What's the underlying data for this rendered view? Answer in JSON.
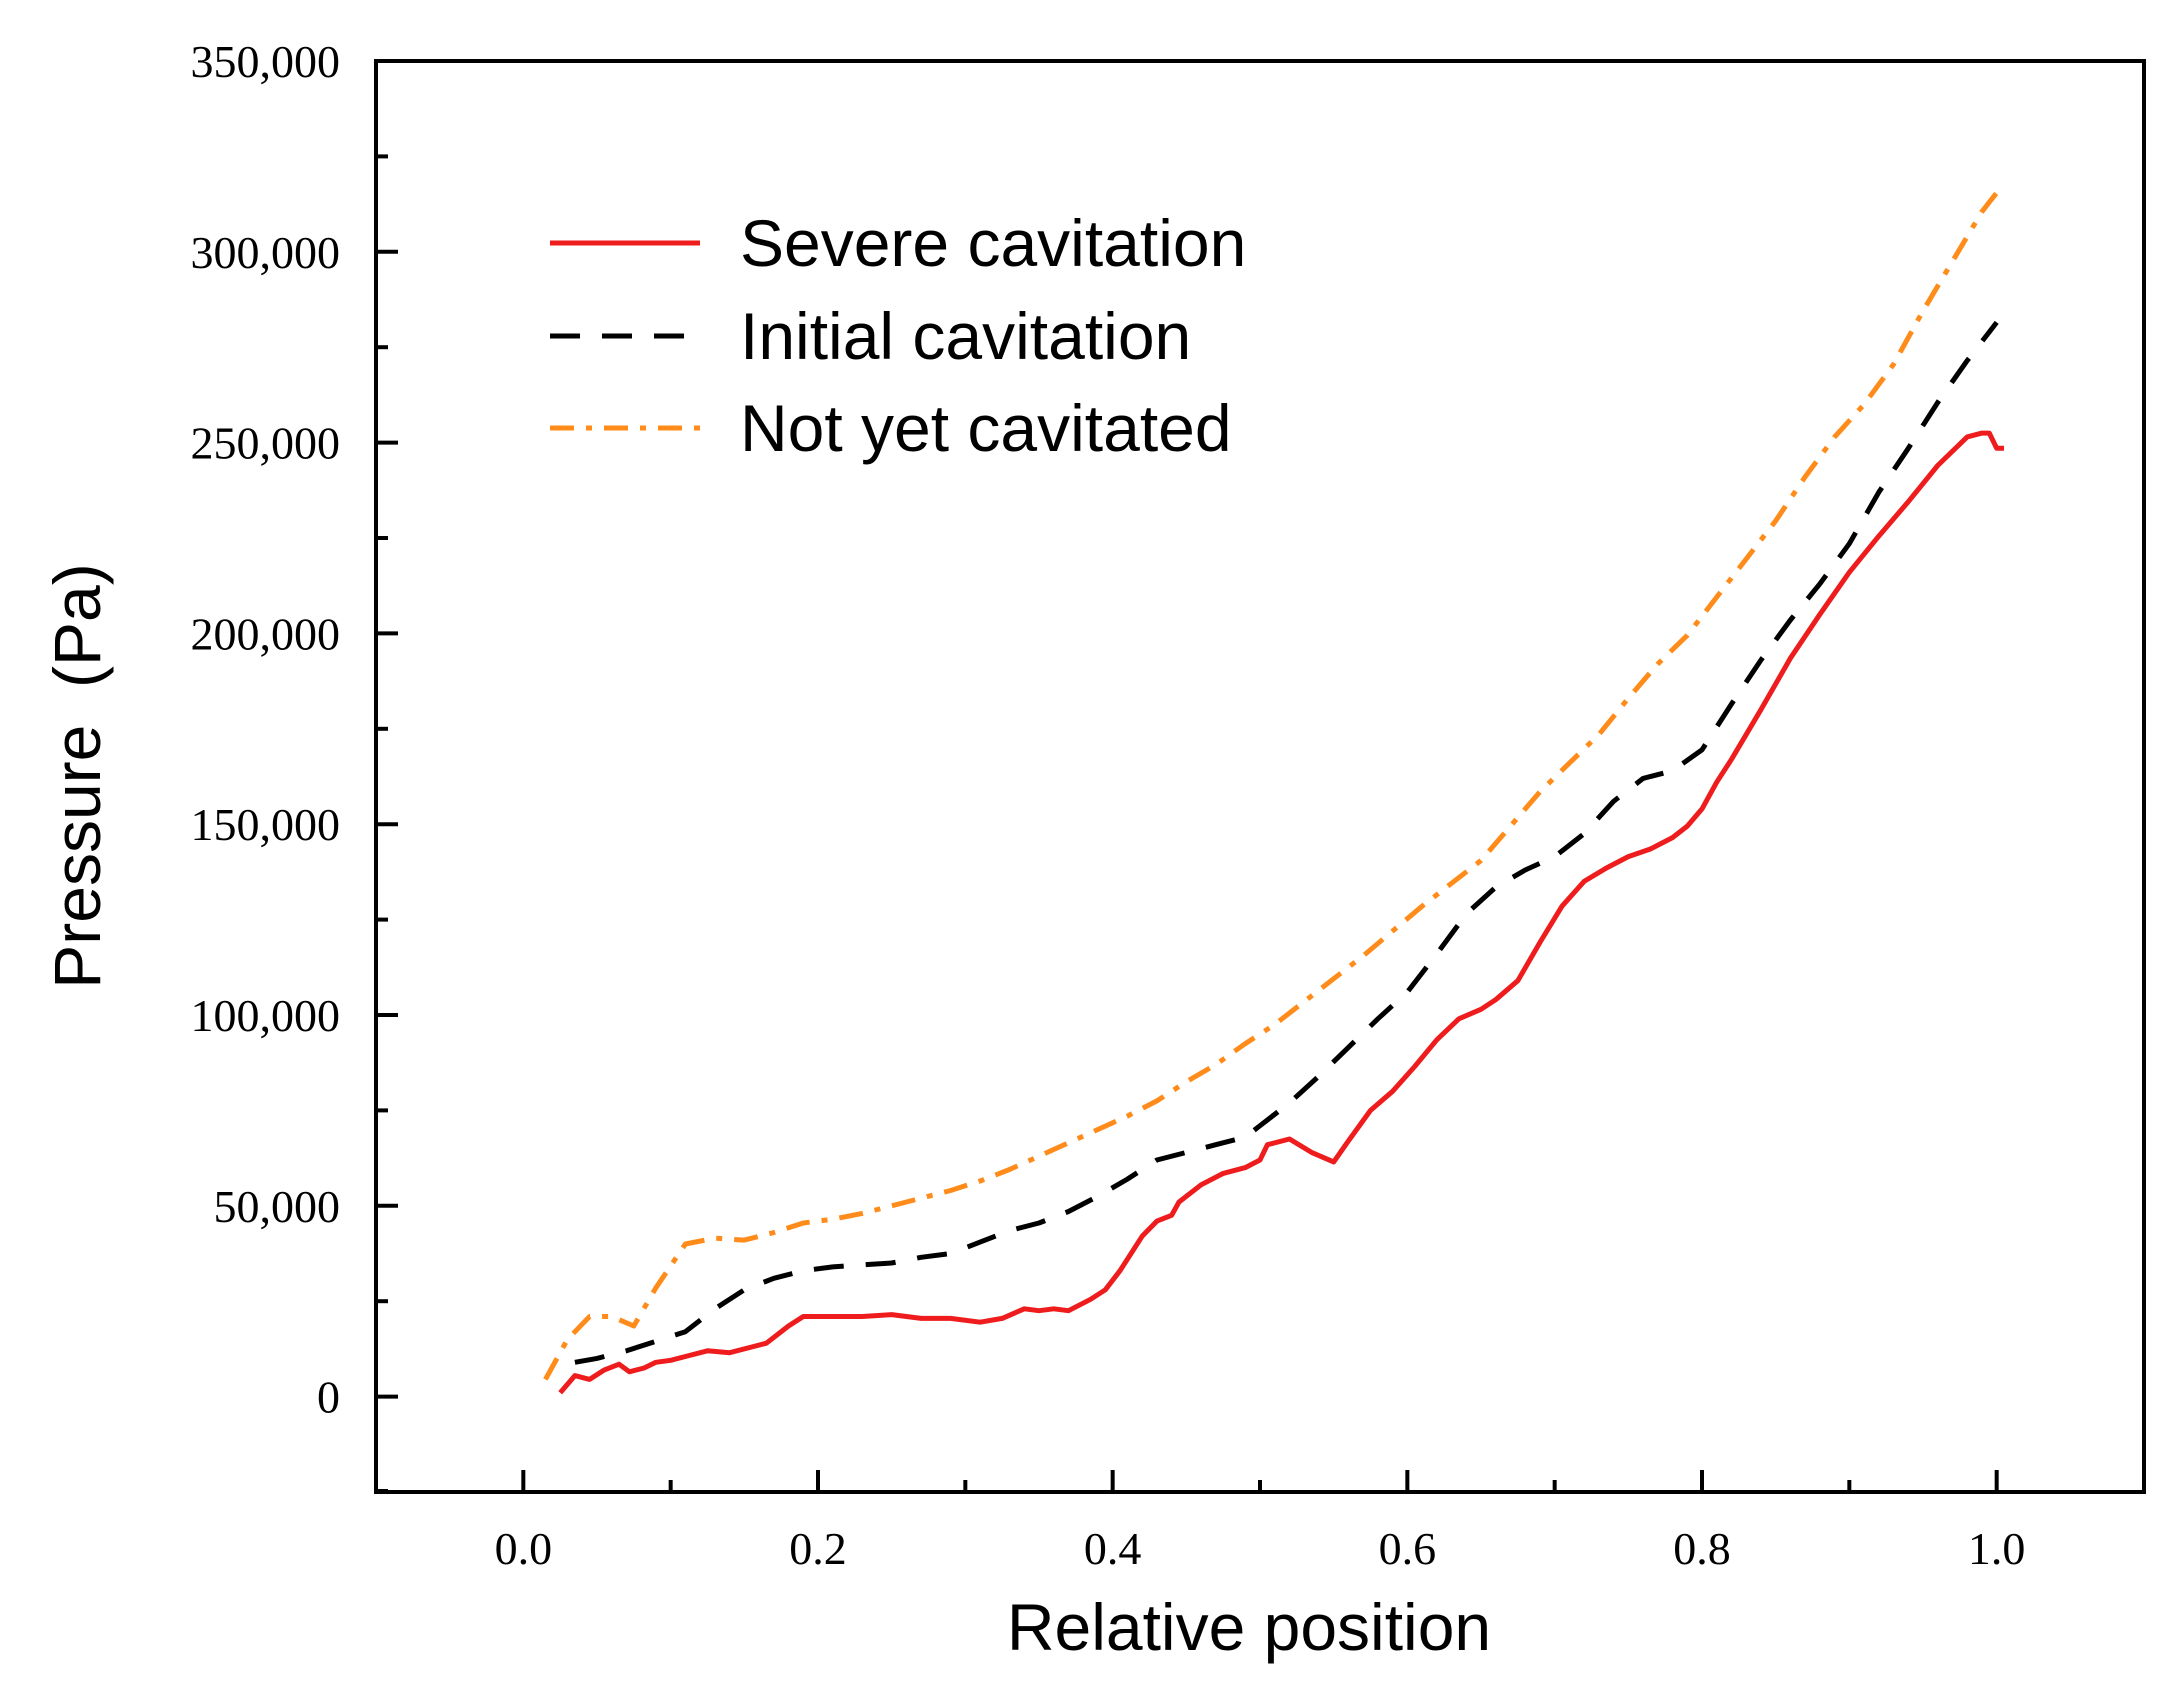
{
  "chart_data": {
    "type": "line",
    "title": "",
    "xlabel": "Relative position",
    "ylabel": "Pressure  (Pa)",
    "xlim": [
      -0.1,
      1.1
    ],
    "ylim": [
      -25000,
      350000
    ],
    "x_ticks": [
      0.0,
      0.2,
      0.4,
      0.6,
      0.8,
      1.0
    ],
    "x_tick_labels": [
      "0.0",
      "0.2",
      "0.4",
      "0.6",
      "0.8",
      "1.0"
    ],
    "y_ticks": [
      0,
      50000,
      100000,
      150000,
      200000,
      250000,
      300000,
      350000
    ],
    "y_tick_labels": [
      "0",
      "50,000",
      "100,000",
      "150,000",
      "200,000",
      "250,000",
      "300,000",
      "350,000"
    ],
    "grid": false,
    "legend_position": "top-left",
    "series": [
      {
        "name": "Severe cavitation",
        "color": "#ee1c1c",
        "style": "solid",
        "x": [
          0.025,
          0.035,
          0.045,
          0.055,
          0.065,
          0.072,
          0.082,
          0.09,
          0.1,
          0.11,
          0.125,
          0.14,
          0.155,
          0.165,
          0.18,
          0.19,
          0.21,
          0.23,
          0.25,
          0.27,
          0.29,
          0.31,
          0.325,
          0.34,
          0.35,
          0.36,
          0.37,
          0.385,
          0.395,
          0.405,
          0.42,
          0.43,
          0.44,
          0.445,
          0.46,
          0.475,
          0.49,
          0.5,
          0.505,
          0.52,
          0.535,
          0.55,
          0.56,
          0.575,
          0.59,
          0.605,
          0.62,
          0.635,
          0.65,
          0.66,
          0.675,
          0.69,
          0.705,
          0.72,
          0.735,
          0.75,
          0.765,
          0.78,
          0.79,
          0.8,
          0.81,
          0.82,
          0.84,
          0.86,
          0.88,
          0.9,
          0.92,
          0.94,
          0.96,
          0.98,
          0.99,
          0.995,
          1.0,
          1.005
        ],
        "y": [
          1000,
          5500,
          4500,
          7000,
          8500,
          6500,
          7500,
          9000,
          9500,
          10500,
          12000,
          11500,
          13000,
          14000,
          18500,
          21000,
          21000,
          21000,
          21500,
          20500,
          20500,
          19500,
          20500,
          23000,
          22500,
          23000,
          22500,
          25500,
          28000,
          33000,
          42000,
          46000,
          47500,
          51000,
          55500,
          58500,
          60000,
          62000,
          66000,
          67500,
          64000,
          61500,
          67000,
          75000,
          80000,
          86500,
          93500,
          99000,
          101500,
          104000,
          109000,
          119000,
          128500,
          135000,
          138500,
          141500,
          143500,
          146500,
          149500,
          154000,
          161000,
          167000,
          180000,
          193500,
          205000,
          216000,
          225500,
          234500,
          244000,
          251500,
          252500,
          252500,
          248500,
          248500
        ]
      },
      {
        "name": "Initial cavitation",
        "color": "#000000",
        "style": "dashed",
        "x": [
          0.035,
          0.05,
          0.07,
          0.09,
          0.11,
          0.13,
          0.15,
          0.17,
          0.19,
          0.21,
          0.23,
          0.25,
          0.27,
          0.29,
          0.31,
          0.33,
          0.35,
          0.37,
          0.39,
          0.41,
          0.43,
          0.45,
          0.47,
          0.49,
          0.5,
          0.52,
          0.54,
          0.56,
          0.58,
          0.6,
          0.62,
          0.64,
          0.66,
          0.68,
          0.7,
          0.72,
          0.74,
          0.76,
          0.78,
          0.8,
          0.82,
          0.84,
          0.86,
          0.88,
          0.9,
          0.92,
          0.94,
          0.96,
          0.98,
          1.0
        ],
        "y": [
          9000,
          10000,
          12000,
          14500,
          17000,
          23000,
          28000,
          31000,
          33000,
          34000,
          34500,
          35000,
          36500,
          37500,
          40500,
          43500,
          45500,
          48500,
          52500,
          57000,
          62000,
          64000,
          66000,
          68000,
          71000,
          77000,
          84000,
          91500,
          99000,
          106000,
          116000,
          126500,
          133500,
          138000,
          141500,
          147500,
          156000,
          162000,
          164000,
          169500,
          181500,
          193000,
          203500,
          213000,
          223500,
          237000,
          248500,
          260500,
          271500,
          281500
        ]
      },
      {
        "name": "Not yet cavitated",
        "color": "#ff8c1a",
        "style": "dashdot",
        "x": [
          0.015,
          0.03,
          0.045,
          0.06,
          0.075,
          0.09,
          0.11,
          0.13,
          0.15,
          0.17,
          0.19,
          0.21,
          0.23,
          0.25,
          0.27,
          0.29,
          0.31,
          0.33,
          0.35,
          0.37,
          0.39,
          0.41,
          0.43,
          0.45,
          0.47,
          0.49,
          0.51,
          0.53,
          0.55,
          0.57,
          0.59,
          0.61,
          0.63,
          0.65,
          0.67,
          0.69,
          0.71,
          0.73,
          0.75,
          0.77,
          0.79,
          0.81,
          0.83,
          0.85,
          0.87,
          0.89,
          0.91,
          0.93,
          0.95,
          0.97,
          0.99,
          1.0
        ],
        "y": [
          4500,
          15000,
          21000,
          21000,
          18500,
          28500,
          40000,
          41500,
          41000,
          43000,
          45500,
          46500,
          48000,
          50000,
          52000,
          54000,
          56500,
          59500,
          63000,
          66500,
          70000,
          73500,
          77500,
          82500,
          87000,
          92500,
          97500,
          103500,
          109500,
          115500,
          122000,
          128500,
          134500,
          140500,
          149500,
          158500,
          166000,
          173500,
          183000,
          192000,
          199500,
          209500,
          219500,
          229500,
          241000,
          251500,
          260000,
          270500,
          284500,
          297500,
          310500,
          315500
        ]
      }
    ]
  }
}
